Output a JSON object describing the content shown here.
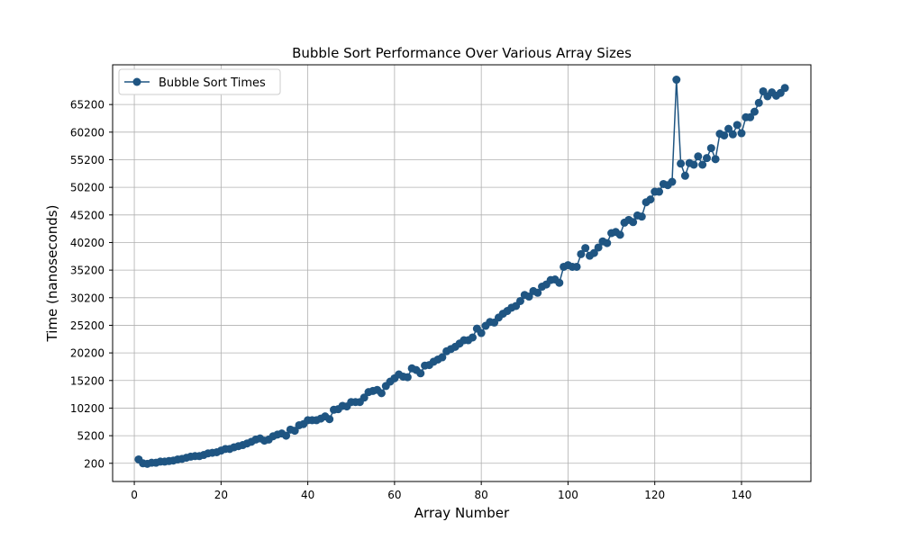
{
  "chart_data": {
    "type": "line",
    "title": "Bubble Sort Performance Over Various Array Sizes",
    "xlabel": "Array Number",
    "ylabel": "Time (nanoseconds)",
    "xlim": [
      -5,
      156
    ],
    "ylim": [
      -3100,
      72400
    ],
    "xticks": [
      0,
      20,
      40,
      60,
      80,
      100,
      120,
      140
    ],
    "yticks": [
      200,
      5200,
      10200,
      15200,
      20200,
      25200,
      30200,
      35200,
      40200,
      45200,
      50200,
      55200,
      60200,
      65200
    ],
    "grid": true,
    "legend_position": "top-left",
    "series": [
      {
        "name": "Bubble Sort Times",
        "color": "#1f5582",
        "marker": "circle",
        "x": [
          1,
          2,
          3,
          4,
          5,
          6,
          7,
          8,
          9,
          10,
          11,
          12,
          13,
          14,
          15,
          16,
          17,
          18,
          19,
          20,
          21,
          22,
          23,
          24,
          25,
          26,
          27,
          28,
          29,
          30,
          31,
          32,
          33,
          34,
          35,
          36,
          37,
          38,
          39,
          40,
          41,
          42,
          43,
          44,
          45,
          46,
          47,
          48,
          49,
          50,
          51,
          52,
          53,
          54,
          55,
          56,
          57,
          58,
          59,
          60,
          61,
          62,
          63,
          64,
          65,
          66,
          67,
          68,
          69,
          70,
          71,
          72,
          73,
          74,
          75,
          76,
          77,
          78,
          79,
          80,
          81,
          82,
          83,
          84,
          85,
          86,
          87,
          88,
          89,
          90,
          91,
          92,
          93,
          94,
          95,
          96,
          97,
          98,
          99,
          100,
          101,
          102,
          103,
          104,
          105,
          106,
          107,
          108,
          109,
          110,
          111,
          112,
          113,
          114,
          115,
          116,
          117,
          118,
          119,
          120,
          121,
          122,
          123,
          124,
          125,
          126,
          127,
          128,
          129,
          130,
          131,
          132,
          133,
          134,
          135,
          136,
          137,
          138,
          139,
          140,
          141,
          142,
          143,
          144,
          145,
          146,
          147,
          148,
          149,
          150
        ],
        "values": [
          900,
          200,
          100,
          300,
          300,
          500,
          500,
          600,
          700,
          900,
          1000,
          1200,
          1400,
          1500,
          1500,
          1700,
          2000,
          2100,
          2200,
          2500,
          2800,
          2800,
          3100,
          3300,
          3500,
          3800,
          4100,
          4500,
          4700,
          4300,
          4500,
          5100,
          5400,
          5600,
          5200,
          6300,
          6100,
          7100,
          7300,
          8000,
          8000,
          8000,
          8300,
          8700,
          8200,
          9900,
          10000,
          10600,
          10500,
          11300,
          11300,
          11300,
          12100,
          13100,
          13300,
          13500,
          12900,
          14200,
          15000,
          15600,
          16300,
          15900,
          15800,
          17400,
          17100,
          16500,
          17900,
          18000,
          18600,
          19000,
          19400,
          20500,
          20900,
          21300,
          21900,
          22500,
          22500,
          23000,
          24600,
          23800,
          25100,
          25800,
          25700,
          26600,
          27300,
          27800,
          28400,
          28700,
          29600,
          30700,
          30400,
          31400,
          31100,
          32200,
          32600,
          33400,
          33500,
          32900,
          35800,
          36100,
          35800,
          35800,
          38100,
          39200,
          37800,
          38300,
          39300,
          40400,
          40100,
          41900,
          42100,
          41600,
          43800,
          44300,
          43900,
          45100,
          44900,
          47500,
          48000,
          49400,
          49400,
          50800,
          50600,
          51200,
          69700,
          54500,
          52300,
          54600,
          54300,
          55800,
          54300,
          55500,
          57300,
          55300,
          59900,
          59600,
          60800,
          59800,
          61500,
          60000,
          62900,
          62900,
          63900,
          65500,
          67600,
          66700,
          67400,
          66800,
          67300,
          68200
        ]
      }
    ]
  }
}
